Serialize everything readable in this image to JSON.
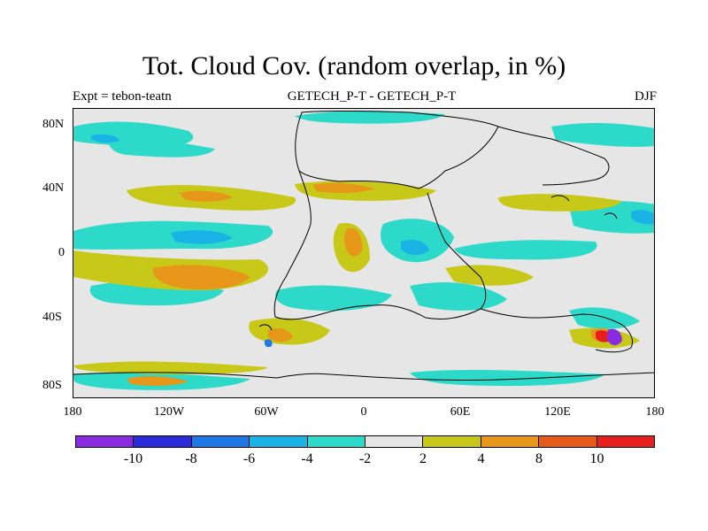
{
  "figure": {
    "title": "Tot. Cloud Cov. (random overlap, in %)",
    "left_string": "Expt = tebon-teatn",
    "center_string": "GETECH_P-T - GETECH_P-T",
    "right_string": "DJF"
  },
  "axes": {
    "lat_ticks": [
      "80N",
      "40N",
      "0",
      "40S",
      "80S"
    ],
    "lon_ticks": [
      "180",
      "120W",
      "60W",
      "0",
      "60E",
      "120E",
      "180"
    ]
  },
  "colorbar": {
    "colors": [
      "#8a2be2",
      "#2b2bd9",
      "#1e78e6",
      "#19b3e6",
      "#2dd9c8",
      "#e6e6e6",
      "#c8c819",
      "#e69619",
      "#e65a19",
      "#e61e1e"
    ],
    "labels": [
      "-10",
      "-8",
      "-6",
      "-4",
      "-2",
      "2",
      "4",
      "8",
      "10"
    ]
  },
  "chart_data": {
    "type": "heatmap",
    "title": "Tot. Cloud Cov. (random overlap, in %)",
    "variable": "Total cloud cover difference",
    "units": "%",
    "experiment": "tebon-teatn",
    "comparison": "GETECH_P-T - GETECH_P-T",
    "season": "DJF",
    "contour_levels": [
      -10,
      -8,
      -6,
      -4,
      -2,
      2,
      4,
      8,
      10
    ],
    "lon_range": [
      -180,
      180
    ],
    "lat_range": [
      -90,
      90
    ]
  }
}
